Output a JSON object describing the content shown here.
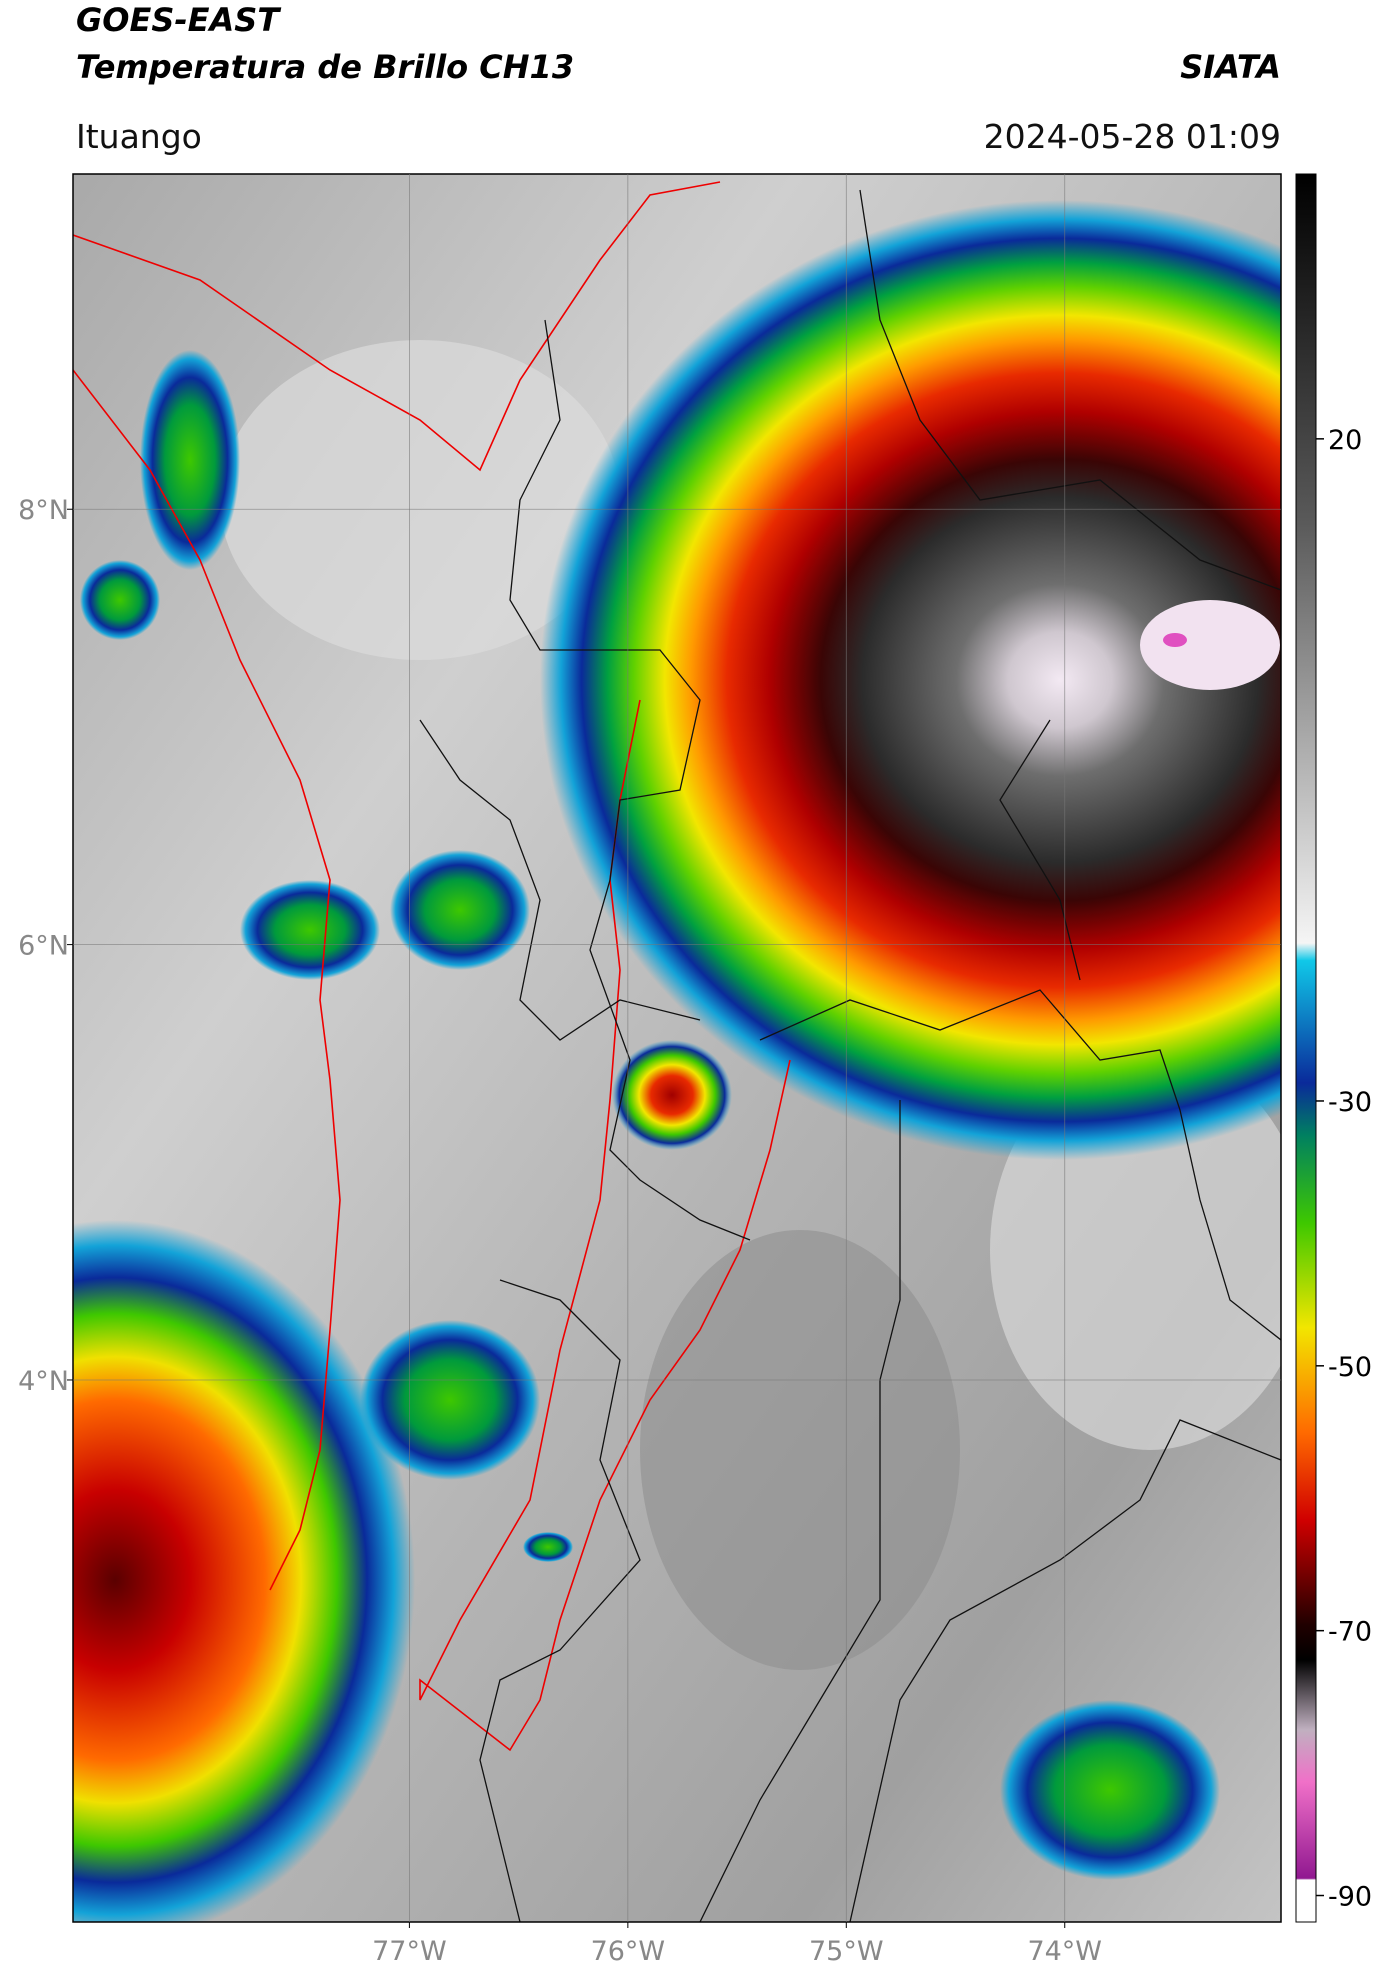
{
  "header": {
    "title": "GOES-EAST",
    "subtitle": "Temperatura de Brillo CH13",
    "source": "SIATA",
    "location": "Ituango",
    "datetime": "2024-05-28 01:09"
  },
  "map": {
    "xlim": [
      -78.54,
      -73.01
    ],
    "ylim": [
      1.51,
      9.54
    ],
    "xticks": [
      {
        "value": -77,
        "label": "77°W"
      },
      {
        "value": -76,
        "label": "76°W"
      },
      {
        "value": -75,
        "label": "75°W"
      },
      {
        "value": -74,
        "label": "74°W"
      }
    ],
    "yticks": [
      {
        "value": 8,
        "label": "8°N"
      },
      {
        "value": 6,
        "label": "6°N"
      },
      {
        "value": 4,
        "label": "4°N"
      }
    ],
    "grid": true
  },
  "colorbar": {
    "lim": [
      -92,
      40
    ],
    "ticks": [
      20,
      -30,
      -50,
      -70,
      -90
    ]
  }
}
